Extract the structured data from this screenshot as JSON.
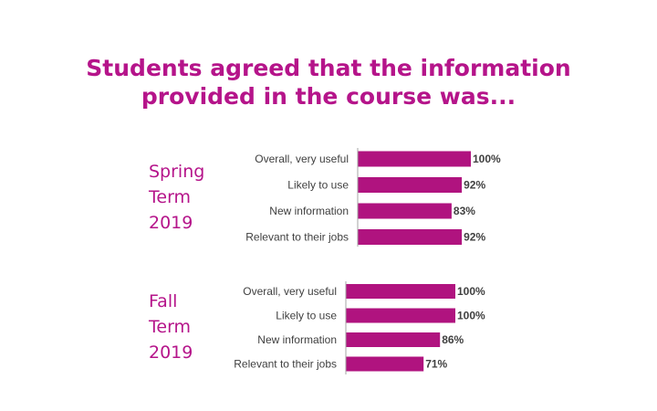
{
  "title": {
    "line1": "Students agreed that the information",
    "line2": "provided in the course was..."
  },
  "colors": {
    "accent": "#b5148a",
    "bar": "#b0137f",
    "axis": "#a6a6a6",
    "label": "#404040"
  },
  "chart_data": [
    {
      "type": "bar",
      "orientation": "horizontal",
      "group_label": [
        "Spring",
        "Term",
        "2019"
      ],
      "categories": [
        "Overall, very useful",
        "Likely to use",
        "New information",
        "Relevant to their jobs"
      ],
      "values": [
        100,
        92,
        83,
        92
      ],
      "value_labels": [
        "100%",
        "92%",
        "83%",
        "92%"
      ],
      "xlim": [
        0,
        100
      ],
      "grid": false
    },
    {
      "type": "bar",
      "orientation": "horizontal",
      "group_label": [
        "Fall",
        "Term",
        "2019"
      ],
      "categories": [
        "Overall, very useful",
        "Likely to use",
        "New information",
        "Relevant to their jobs"
      ],
      "values": [
        100,
        100,
        86,
        71
      ],
      "value_labels": [
        "100%",
        "100%",
        "86%",
        "71%"
      ],
      "xlim": [
        0,
        100
      ],
      "grid": false
    }
  ]
}
